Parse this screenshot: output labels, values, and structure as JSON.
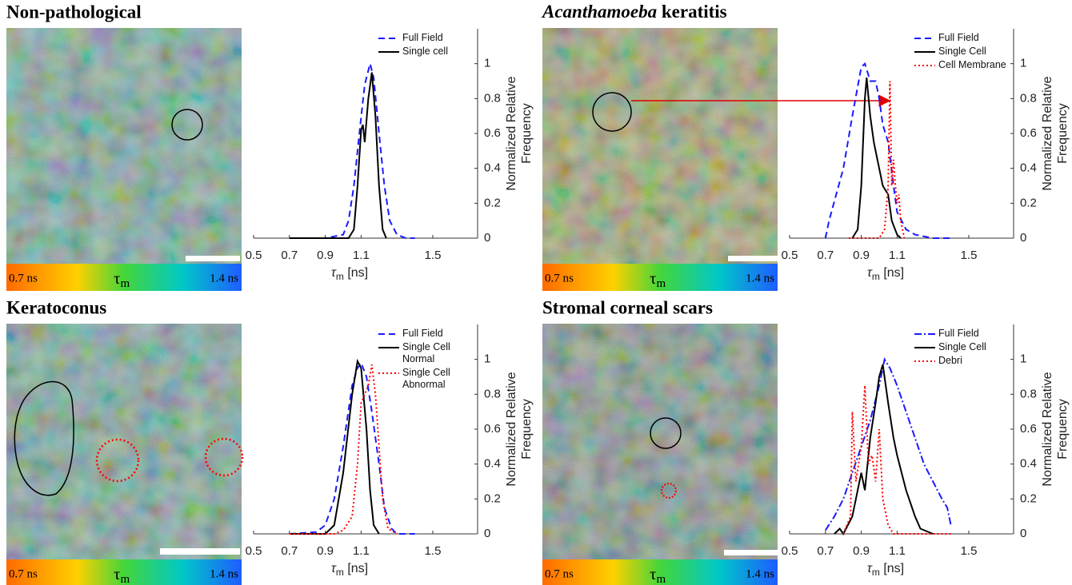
{
  "colorbar": {
    "low": "0.7 ns",
    "symbol": "τ",
    "subscript": "m",
    "high": "1.4 ns"
  },
  "chart_data": [
    {
      "type": "line",
      "title": "Non-pathological",
      "xlabel": [
        "τ",
        "m",
        " [ns]"
      ],
      "ylabel": [
        "Normalized Relative",
        "Frequency"
      ],
      "xlim": [
        0.5,
        1.75
      ],
      "xticks": [
        0.5,
        0.7,
        0.9,
        1.1,
        1.5
      ],
      "ylim": [
        0,
        1.2
      ],
      "yticks": [
        0,
        0.2,
        0.4,
        0.6,
        0.8,
        1
      ],
      "legend": "upper right",
      "series": [
        {
          "name": "Full Field",
          "color": "#1a1aff",
          "linestyle": "dashed",
          "x": [
            0.7,
            0.9,
            1.0,
            1.03,
            1.06,
            1.09,
            1.12,
            1.15,
            1.17,
            1.2,
            1.23,
            1.26,
            1.3,
            1.35,
            1.4
          ],
          "values": [
            0,
            0,
            0.02,
            0.1,
            0.3,
            0.6,
            0.88,
            1.0,
            0.92,
            0.6,
            0.3,
            0.1,
            0.02,
            0,
            0
          ]
        },
        {
          "name": "Single cell",
          "color": "#000000",
          "linestyle": "solid",
          "x": [
            0.7,
            0.95,
            1.03,
            1.06,
            1.08,
            1.1,
            1.11,
            1.12,
            1.14,
            1.16,
            1.18,
            1.2,
            1.22,
            1.24
          ],
          "values": [
            0,
            0,
            0,
            0.05,
            0.3,
            0.62,
            0.65,
            0.55,
            0.8,
            0.95,
            0.7,
            0.3,
            0.05,
            0
          ]
        }
      ]
    },
    {
      "type": "line",
      "title": [
        {
          "text": "Acanthamoeba",
          "italic": true
        },
        {
          "text": " keratitis",
          "italic": false
        }
      ],
      "xlabel": [
        "τ",
        "m",
        " [ns]"
      ],
      "ylabel": [
        "Normalized Relative",
        "Frequency"
      ],
      "xlim": [
        0.5,
        1.75
      ],
      "xticks": [
        0.5,
        0.7,
        0.9,
        1.1,
        1.5
      ],
      "ylim": [
        0,
        1.2
      ],
      "yticks": [
        0,
        0.2,
        0.4,
        0.6,
        0.8,
        1
      ],
      "legend": "upper right",
      "series": [
        {
          "name": "Full Field",
          "color": "#1a1aff",
          "linestyle": "dashed",
          "x": [
            0.7,
            0.72,
            0.8,
            0.85,
            0.9,
            0.92,
            0.95,
            0.98,
            1.0,
            1.02,
            1.05,
            1.08,
            1.1,
            1.15,
            1.2,
            1.3,
            1.4
          ],
          "values": [
            0,
            0.1,
            0.4,
            0.7,
            0.98,
            1.0,
            0.9,
            0.9,
            0.8,
            0.65,
            0.55,
            0.3,
            0.15,
            0.05,
            0.02,
            0,
            0
          ]
        },
        {
          "name": "Single Cell",
          "color": "#000000",
          "linestyle": "solid",
          "x": [
            0.85,
            0.88,
            0.9,
            0.92,
            0.93,
            0.95,
            0.97,
            1.0,
            1.02,
            1.05,
            1.07,
            1.1,
            1.12
          ],
          "values": [
            0,
            0.05,
            0.3,
            0.8,
            0.92,
            0.7,
            0.55,
            0.4,
            0.3,
            0.25,
            0.1,
            0.02,
            0
          ]
        },
        {
          "name": "Cell Membrane",
          "color": "#ff0000",
          "linestyle": "dotted",
          "x": [
            0.83,
            1.0,
            1.03,
            1.05,
            1.06,
            1.07,
            1.08,
            1.09,
            1.1,
            1.11,
            1.12,
            1.14
          ],
          "values": [
            0,
            0,
            0.05,
            0.3,
            0.9,
            0.3,
            0.45,
            0.3,
            0.2,
            0.25,
            0.1,
            0
          ]
        }
      ]
    },
    {
      "type": "line",
      "title": "Keratoconus",
      "xlabel": [
        "τ",
        "m",
        " [ns]"
      ],
      "ylabel": [
        "Normalized Relative",
        "Frequency"
      ],
      "xlim": [
        0.5,
        1.75
      ],
      "xticks": [
        0.5,
        0.7,
        0.9,
        1.1,
        1.5
      ],
      "ylim": [
        0,
        1.2
      ],
      "yticks": [
        0,
        0.2,
        0.4,
        0.6,
        0.8,
        1
      ],
      "legend": "upper right",
      "series": [
        {
          "name": "Full Field",
          "color": "#1a1aff",
          "linestyle": "dashed",
          "x": [
            0.7,
            0.85,
            0.9,
            0.95,
            1.0,
            1.05,
            1.08,
            1.1,
            1.13,
            1.16,
            1.2,
            1.23,
            1.27,
            1.3,
            1.4
          ],
          "values": [
            0,
            0.01,
            0.05,
            0.2,
            0.5,
            0.85,
            0.95,
            0.98,
            0.9,
            0.7,
            0.4,
            0.15,
            0.03,
            0,
            0
          ]
        },
        {
          "name": "Single Cell Normal",
          "color": "#000000",
          "linestyle": "solid",
          "x": [
            0.7,
            0.9,
            0.95,
            1.0,
            1.05,
            1.08,
            1.1,
            1.13,
            1.15,
            1.17,
            1.2
          ],
          "values": [
            0,
            0,
            0.05,
            0.35,
            0.8,
            0.99,
            0.95,
            0.6,
            0.25,
            0.05,
            0
          ]
        },
        {
          "name": "Single Cell Abnormal",
          "color": "#ff0000",
          "linestyle": "dotted",
          "x": [
            0.7,
            0.95,
            1.0,
            1.05,
            1.08,
            1.1,
            1.12,
            1.14,
            1.16,
            1.18,
            1.2,
            1.22,
            1.25,
            1.3
          ],
          "values": [
            0,
            0,
            0.02,
            0.1,
            0.4,
            0.75,
            0.8,
            0.85,
            0.97,
            0.8,
            0.5,
            0.2,
            0.03,
            0
          ]
        }
      ]
    },
    {
      "type": "line",
      "title": "Stromal corneal scars",
      "xlabel": [
        "τ",
        "m",
        " [ns]"
      ],
      "ylabel": [
        "Normalized Relative",
        "Frequency"
      ],
      "xlim": [
        0.5,
        1.75
      ],
      "xticks": [
        0.5,
        0.7,
        0.9,
        1.1,
        1.5
      ],
      "ylim": [
        0,
        1.2
      ],
      "yticks": [
        0,
        0.2,
        0.4,
        0.6,
        0.8,
        1
      ],
      "legend": "upper right",
      "series": [
        {
          "name": "Full Field",
          "color": "#1a1aff",
          "linestyle": "dashdot",
          "x": [
            0.7,
            0.75,
            0.8,
            0.85,
            0.9,
            0.95,
            1.0,
            1.03,
            1.06,
            1.1,
            1.15,
            1.2,
            1.25,
            1.3,
            1.35,
            1.38,
            1.4
          ],
          "values": [
            0.02,
            0.1,
            0.2,
            0.35,
            0.5,
            0.65,
            0.85,
            1.0,
            0.95,
            0.85,
            0.7,
            0.55,
            0.4,
            0.3,
            0.2,
            0.15,
            0.05
          ]
        },
        {
          "name": "Single Cell",
          "color": "#000000",
          "linestyle": "solid",
          "x": [
            0.75,
            0.78,
            0.8,
            0.85,
            0.88,
            0.9,
            0.92,
            0.95,
            0.98,
            1.0,
            1.02,
            1.05,
            1.08,
            1.1,
            1.15,
            1.2,
            1.23,
            1.3
          ],
          "values": [
            0,
            0.03,
            0,
            0.1,
            0.25,
            0.35,
            0.25,
            0.55,
            0.75,
            0.9,
            0.97,
            0.75,
            0.55,
            0.45,
            0.25,
            0.1,
            0.03,
            0
          ]
        },
        {
          "name": "Debri",
          "color": "#ff0000",
          "linestyle": "dotted",
          "x": [
            0.8,
            0.84,
            0.85,
            0.87,
            0.9,
            0.92,
            0.94,
            0.96,
            0.98,
            1.0,
            1.02,
            1.05,
            1.08,
            1.4
          ],
          "values": [
            0,
            0.1,
            0.7,
            0.3,
            0.5,
            0.85,
            0.4,
            0.45,
            0.3,
            0.6,
            0.2,
            0.05,
            0,
            0
          ]
        }
      ]
    }
  ]
}
